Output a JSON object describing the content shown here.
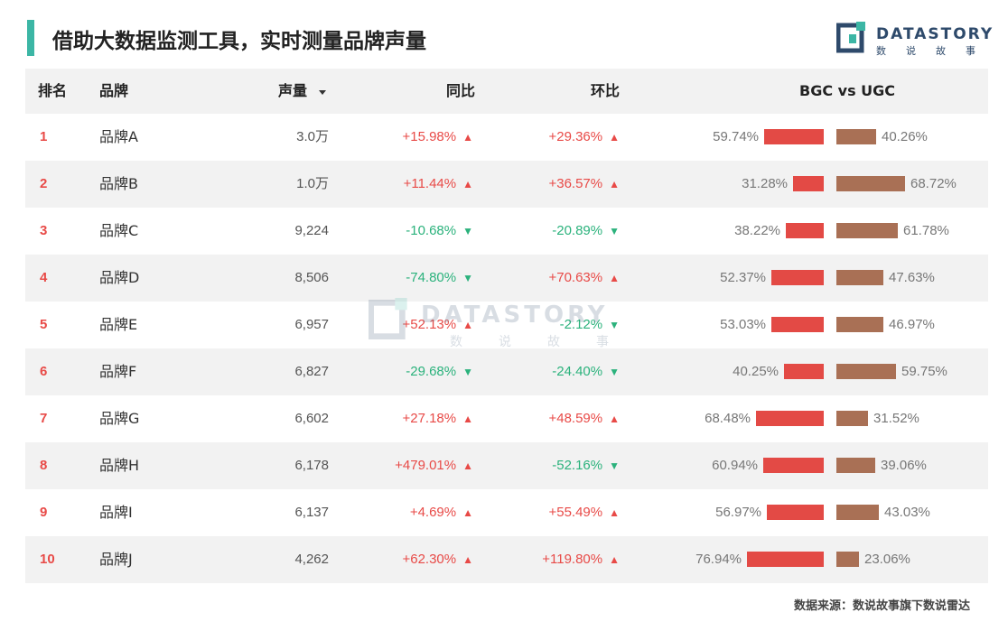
{
  "header": {
    "title": "借助大数据监测工具，实时测量品牌声量",
    "logo_text": "DATASTORY",
    "logo_sub": "数说故事"
  },
  "table": {
    "columns": {
      "rank": "排名",
      "brand": "品牌",
      "volume": "声量",
      "yoy": "同比",
      "mom": "环比",
      "split": "BGC vs UGC"
    },
    "sort_icon": "caret-down-icon",
    "rows": [
      {
        "rank": "1",
        "brand": "品牌A",
        "volume": "3.0万",
        "yoy": "+15.98%",
        "yoy_dir": "up",
        "mom": "+29.36%",
        "mom_dir": "up",
        "bgc": "59.74%",
        "ugc": "40.26%",
        "bgc_value": 59.74,
        "ugc_value": 40.26
      },
      {
        "rank": "2",
        "brand": "品牌B",
        "volume": "1.0万",
        "yoy": "+11.44%",
        "yoy_dir": "up",
        "mom": "+36.57%",
        "mom_dir": "up",
        "bgc": "31.28%",
        "ugc": "68.72%",
        "bgc_value": 31.28,
        "ugc_value": 68.72
      },
      {
        "rank": "3",
        "brand": "品牌C",
        "volume": "9,224",
        "yoy": "-10.68%",
        "yoy_dir": "down",
        "mom": "-20.89%",
        "mom_dir": "down",
        "bgc": "38.22%",
        "ugc": "61.78%",
        "bgc_value": 38.22,
        "ugc_value": 61.78
      },
      {
        "rank": "4",
        "brand": "品牌D",
        "volume": "8,506",
        "yoy": "-74.80%",
        "yoy_dir": "down",
        "mom": "+70.63%",
        "mom_dir": "up",
        "bgc": "52.37%",
        "ugc": "47.63%",
        "bgc_value": 52.37,
        "ugc_value": 47.63
      },
      {
        "rank": "5",
        "brand": "品牌E",
        "volume": "6,957",
        "yoy": "+52.13%",
        "yoy_dir": "up",
        "mom": "-2.12%",
        "mom_dir": "down",
        "bgc": "53.03%",
        "ugc": "46.97%",
        "bgc_value": 53.03,
        "ugc_value": 46.97
      },
      {
        "rank": "6",
        "brand": "品牌F",
        "volume": "6,827",
        "yoy": "-29.68%",
        "yoy_dir": "down",
        "mom": "-24.40%",
        "mom_dir": "down",
        "bgc": "40.25%",
        "ugc": "59.75%",
        "bgc_value": 40.25,
        "ugc_value": 59.75
      },
      {
        "rank": "7",
        "brand": "品牌G",
        "volume": "6,602",
        "yoy": "+27.18%",
        "yoy_dir": "up",
        "mom": "+48.59%",
        "mom_dir": "up",
        "bgc": "68.48%",
        "ugc": "31.52%",
        "bgc_value": 68.48,
        "ugc_value": 31.52
      },
      {
        "rank": "8",
        "brand": "品牌H",
        "volume": "6,178",
        "yoy": "+479.01%",
        "yoy_dir": "up",
        "mom": "-52.16%",
        "mom_dir": "down",
        "bgc": "60.94%",
        "ugc": "39.06%",
        "bgc_value": 60.94,
        "ugc_value": 39.06
      },
      {
        "rank": "9",
        "brand": "品牌I",
        "volume": "6,137",
        "yoy": "+4.69%",
        "yoy_dir": "up",
        "mom": "+55.49%",
        "mom_dir": "up",
        "bgc": "56.97%",
        "ugc": "43.03%",
        "bgc_value": 56.97,
        "ugc_value": 43.03
      },
      {
        "rank": "10",
        "brand": "品牌J",
        "volume": "4,262",
        "yoy": "+62.30%",
        "yoy_dir": "up",
        "mom": "+119.80%",
        "mom_dir": "up",
        "bgc": "76.94%",
        "ugc": "23.06%",
        "bgc_value": 76.94,
        "ugc_value": 23.06
      }
    ]
  },
  "watermark": {
    "text": "DATASTORY",
    "sub": "数说故事"
  },
  "footer": {
    "source": "数据来源：数说故事旗下数说雷达"
  },
  "colors": {
    "accent": "#3cb6a5",
    "up": "#e84a47",
    "down": "#2bb27c",
    "bgc_bar": "#e34a45",
    "ugc_bar": "#a97055",
    "row_alt": "#f2f2f2"
  }
}
